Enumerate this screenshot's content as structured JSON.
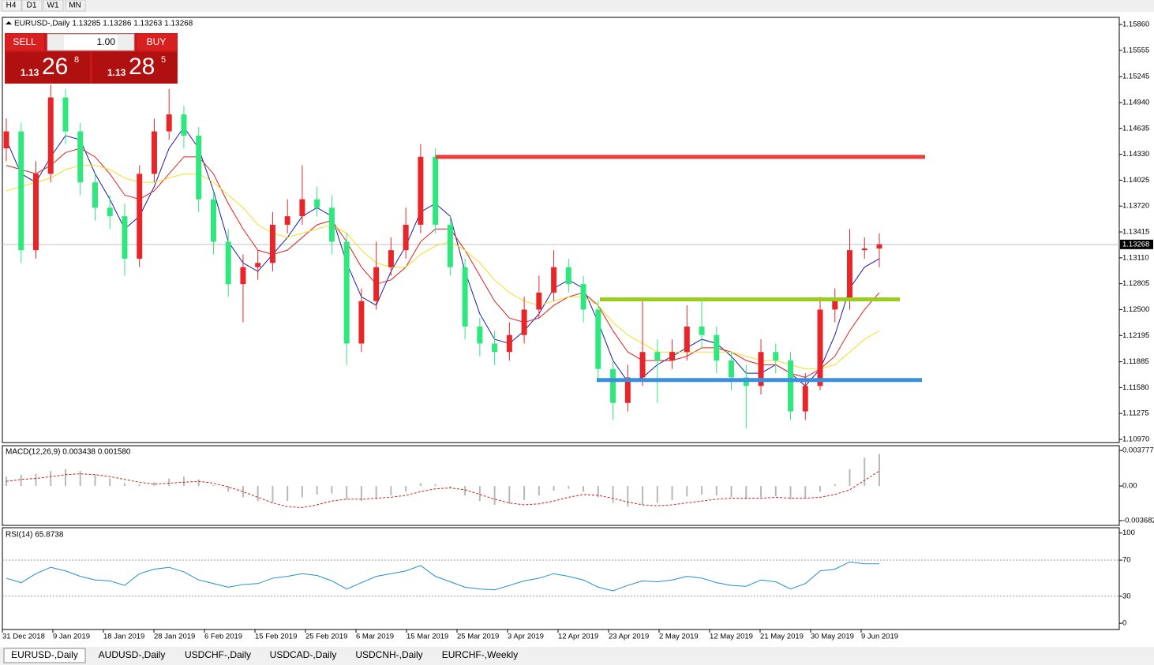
{
  "timeframes": [
    "H4",
    "D1",
    "W1",
    "MN"
  ],
  "trade_panel": {
    "sell": "SELL",
    "buy": "BUY",
    "lot": "1.00",
    "bid": {
      "big": "1.13",
      "pips": "26",
      "frac": "8"
    },
    "ask": {
      "big": "1.13",
      "pips": "28",
      "frac": "5"
    }
  },
  "tabs": [
    "EURUSD-,Daily",
    "AUDUSD-,Daily",
    "USDCHF-,Daily",
    "USDCAD-,Daily",
    "USDCNH-,Daily",
    "EURCHF-,Weekly"
  ],
  "chart_data": [
    {
      "type": "candlestick",
      "title": "EURUSD-,Daily  1.13285 1.13286 1.13263 1.13268",
      "up_color": "#e8262a",
      "down_color": "#2ee87e",
      "candles": [
        [
          1.144,
          1.1475,
          1.1425,
          1.146
        ],
        [
          1.146,
          1.147,
          1.1305,
          1.132
        ],
        [
          1.132,
          1.1425,
          1.131,
          1.141
        ],
        [
          1.141,
          1.1515,
          1.14,
          1.15
        ],
        [
          1.15,
          1.151,
          1.1445,
          1.146
        ],
        [
          1.146,
          1.147,
          1.1385,
          1.14
        ],
        [
          1.14,
          1.141,
          1.1355,
          1.137
        ],
        [
          1.137,
          1.1385,
          1.1345,
          1.136
        ],
        [
          1.136,
          1.1375,
          1.129,
          1.131
        ],
        [
          1.131,
          1.142,
          1.13,
          1.141
        ],
        [
          1.141,
          1.1475,
          1.14,
          1.146
        ],
        [
          1.146,
          1.151,
          1.145,
          1.148
        ],
        [
          1.148,
          1.149,
          1.144,
          1.1455
        ],
        [
          1.1455,
          1.1465,
          1.1365,
          1.138
        ],
        [
          1.138,
          1.139,
          1.1315,
          1.133
        ],
        [
          1.133,
          1.1345,
          1.1265,
          1.128
        ],
        [
          1.128,
          1.1315,
          1.1235,
          1.13
        ],
        [
          1.13,
          1.132,
          1.1285,
          1.1305
        ],
        [
          1.1305,
          1.1365,
          1.1295,
          1.135
        ],
        [
          1.135,
          1.138,
          1.134,
          1.136
        ],
        [
          1.136,
          1.142,
          1.135,
          1.138
        ],
        [
          1.138,
          1.1395,
          1.136,
          1.137
        ],
        [
          1.137,
          1.1385,
          1.1315,
          1.133
        ],
        [
          1.133,
          1.134,
          1.1185,
          1.121
        ],
        [
          1.121,
          1.1275,
          1.12,
          1.126
        ],
        [
          1.126,
          1.133,
          1.125,
          1.13
        ],
        [
          1.13,
          1.1335,
          1.129,
          1.132
        ],
        [
          1.132,
          1.137,
          1.131,
          1.135
        ],
        [
          1.135,
          1.1445,
          1.134,
          1.143
        ],
        [
          1.143,
          1.144,
          1.134,
          1.135
        ],
        [
          1.135,
          1.136,
          1.129,
          1.13
        ],
        [
          1.13,
          1.131,
          1.1215,
          1.123
        ],
        [
          1.123,
          1.124,
          1.1195,
          1.121
        ],
        [
          1.121,
          1.1225,
          1.1185,
          1.12
        ],
        [
          1.12,
          1.1235,
          1.119,
          1.122
        ],
        [
          1.122,
          1.1265,
          1.121,
          1.125
        ],
        [
          1.125,
          1.129,
          1.124,
          1.127
        ],
        [
          1.127,
          1.132,
          1.126,
          1.13
        ],
        [
          1.13,
          1.131,
          1.127,
          1.128
        ],
        [
          1.128,
          1.129,
          1.1235,
          1.125
        ],
        [
          1.125,
          1.126,
          1.1165,
          1.118
        ],
        [
          1.118,
          1.119,
          1.112,
          1.114
        ],
        [
          1.114,
          1.1185,
          1.113,
          1.117
        ],
        [
          1.117,
          1.126,
          1.116,
          1.12
        ],
        [
          1.12,
          1.1215,
          1.114,
          1.119
        ],
        [
          1.119,
          1.1215,
          1.118,
          1.12
        ],
        [
          1.12,
          1.1255,
          1.119,
          1.123
        ],
        [
          1.123,
          1.126,
          1.1205,
          1.122
        ],
        [
          1.122,
          1.123,
          1.1175,
          1.119
        ],
        [
          1.119,
          1.12,
          1.1155,
          1.117
        ],
        [
          1.117,
          1.1185,
          1.111,
          1.116
        ],
        [
          1.116,
          1.1215,
          1.115,
          1.12
        ],
        [
          1.12,
          1.121,
          1.1175,
          1.119
        ],
        [
          1.119,
          1.12,
          1.112,
          1.113
        ],
        [
          1.113,
          1.1175,
          1.112,
          1.116
        ],
        [
          1.116,
          1.1265,
          1.1155,
          1.125
        ],
        [
          1.125,
          1.1275,
          1.1235,
          1.126
        ],
        [
          1.126,
          1.1345,
          1.125,
          1.132
        ],
        [
          1.132,
          1.1335,
          1.131,
          1.1322
        ],
        [
          1.1322,
          1.134,
          1.13,
          1.1327
        ]
      ],
      "lines": [
        {
          "color": "#1a1aa8",
          "values": [
            1.145,
            1.141,
            1.14,
            1.143,
            1.1455,
            1.145,
            1.141,
            1.138,
            1.1345,
            1.136,
            1.1395,
            1.144,
            1.1465,
            1.144,
            1.139,
            1.133,
            1.1305,
            1.1295,
            1.1315,
            1.1335,
            1.136,
            1.137,
            1.136,
            1.1305,
            1.1265,
            1.1255,
            1.1295,
            1.1325,
            1.1365,
            1.1375,
            1.136,
            1.1295,
            1.1245,
            1.1215,
            1.121,
            1.1225,
            1.1245,
            1.1275,
            1.1285,
            1.1275,
            1.1235,
            1.119,
            1.1165,
            1.117,
            1.1185,
            1.1195,
            1.1205,
            1.1215,
            1.121,
            1.1195,
            1.1175,
            1.1175,
            1.1185,
            1.1175,
            1.116,
            1.118,
            1.122,
            1.1275,
            1.13,
            1.131
          ]
        },
        {
          "color": "#dd2020",
          "values": [
            1.142,
            1.1415,
            1.141,
            1.142,
            1.1435,
            1.144,
            1.143,
            1.141,
            1.1385,
            1.138,
            1.139,
            1.141,
            1.143,
            1.143,
            1.141,
            1.1375,
            1.1345,
            1.132,
            1.1315,
            1.132,
            1.1335,
            1.135,
            1.1355,
            1.133,
            1.13,
            1.128,
            1.1285,
            1.13,
            1.133,
            1.1345,
            1.1345,
            1.132,
            1.129,
            1.126,
            1.124,
            1.1235,
            1.124,
            1.1255,
            1.1265,
            1.127,
            1.1255,
            1.1225,
            1.12,
            1.119,
            1.119,
            1.119,
            1.1195,
            1.1205,
            1.1205,
            1.12,
            1.119,
            1.1185,
            1.1185,
            1.1175,
            1.117,
            1.118,
            1.1195,
            1.1225,
            1.125,
            1.127
          ]
        },
        {
          "color": "#f0e020",
          "values": [
            1.139,
            1.1395,
            1.14,
            1.1405,
            1.1415,
            1.142,
            1.142,
            1.1415,
            1.1405,
            1.14,
            1.14,
            1.1405,
            1.141,
            1.141,
            1.14,
            1.1385,
            1.137,
            1.135,
            1.134,
            1.1335,
            1.134,
            1.1345,
            1.135,
            1.134,
            1.132,
            1.1305,
            1.13,
            1.13,
            1.1315,
            1.1325,
            1.133,
            1.132,
            1.1305,
            1.1285,
            1.127,
            1.126,
            1.1255,
            1.126,
            1.1265,
            1.1265,
            1.1255,
            1.1235,
            1.122,
            1.121,
            1.12,
            1.12,
            1.12,
            1.12,
            1.12,
            1.12,
            1.1195,
            1.119,
            1.119,
            1.1185,
            1.118,
            1.118,
            1.1185,
            1.12,
            1.1215,
            1.1225
          ]
        }
      ],
      "levels": [
        {
          "price": 1.143,
          "color": "#ee3b3b"
        },
        {
          "price": 1.1262,
          "color": "#9acd1e"
        },
        {
          "price": 1.1167,
          "color": "#3a8fe0"
        }
      ],
      "current_price": {
        "value": 1.13268,
        "label": "1.13268"
      },
      "ylim": [
        1.10933,
        1.15944
      ],
      "yticks": [
        {
          "value": 1.1586,
          "label": "1.15860"
        },
        {
          "value": 1.15555,
          "label": "1.15555"
        },
        {
          "value": 1.15245,
          "label": "1.15245"
        },
        {
          "value": 1.1494,
          "label": "1.14940"
        },
        {
          "value": 1.14635,
          "label": "1.14635"
        },
        {
          "value": 1.1433,
          "label": "1.14330"
        },
        {
          "value": 1.14025,
          "label": "1.14025"
        },
        {
          "value": 1.1372,
          "label": "1.13720"
        },
        {
          "value": 1.13415,
          "label": "1.13415"
        },
        {
          "value": 1.1311,
          "label": "1.13110"
        },
        {
          "value": 1.12805,
          "label": "1.12805"
        },
        {
          "value": 1.125,
          "label": "1.12500"
        },
        {
          "value": 1.12195,
          "label": "1.12195"
        },
        {
          "value": 1.11885,
          "label": "1.11885"
        },
        {
          "value": 1.1158,
          "label": "1.11580"
        },
        {
          "value": 1.11275,
          "label": "1.11275"
        },
        {
          "value": 1.1097,
          "label": "1.10970"
        }
      ],
      "date_labels": [
        "31 Dec 2018",
        "9 Jan 2019",
        "18 Jan 2019",
        "28 Jan 2019",
        "6 Feb 2019",
        "15 Feb 2019",
        "25 Feb 2019",
        "6 Mar 2019",
        "15 Mar 2019",
        "25 Mar 2019",
        "3 Apr 2019",
        "12 Apr 2019",
        "23 Apr 2019",
        "2 May 2019",
        "12 May 2019",
        "21 May 2019",
        "30 May 2019",
        "9 Jun 2019"
      ]
    },
    {
      "type": "macd",
      "title": "MACD(12,26,9) 0.003438 0.001580",
      "hist_color": "#b8b8b8",
      "signal_color": "#cc2222",
      "histogram": [
        0.001,
        0.0012,
        0.0013,
        0.0016,
        0.0018,
        0.0016,
        0.0012,
        0.0008,
        0.0003,
        0.0002,
        0.0004,
        0.0008,
        0.001,
        0.0007,
        0.0001,
        -0.0006,
        -0.0012,
        -0.0016,
        -0.0018,
        -0.0016,
        -0.0012,
        -0.0009,
        -0.0008,
        -0.0014,
        -0.0016,
        -0.0014,
        -0.001,
        -0.0006,
        0.0003,
        0.0002,
        -0.0002,
        -0.001,
        -0.0016,
        -0.002,
        -0.0019,
        -0.0015,
        -0.001,
        -0.0005,
        -0.0003,
        -0.0006,
        -0.0012,
        -0.0018,
        -0.0022,
        -0.002,
        -0.0018,
        -0.0015,
        -0.0011,
        -0.0009,
        -0.001,
        -0.0012,
        -0.0014,
        -0.0012,
        -0.0011,
        -0.0014,
        -0.0013,
        -0.0006,
        0.0002,
        0.0018,
        0.003,
        0.0034
      ],
      "signal": [
        0.0005,
        0.0007,
        0.0008,
        0.001,
        0.0012,
        0.0013,
        0.0012,
        0.001,
        0.0007,
        0.0004,
        0.0002,
        0.0003,
        0.0004,
        0.0005,
        0.0003,
        -0.0001,
        -0.0006,
        -0.0012,
        -0.0018,
        -0.0022,
        -0.0023,
        -0.002,
        -0.0016,
        -0.0014,
        -0.0014,
        -0.0013,
        -0.0012,
        -0.001,
        -0.0006,
        -0.0003,
        -0.0002,
        -0.0004,
        -0.0009,
        -0.0014,
        -0.0018,
        -0.002,
        -0.0019,
        -0.0016,
        -0.0012,
        -0.0009,
        -0.001,
        -0.0013,
        -0.0017,
        -0.002,
        -0.0021,
        -0.002,
        -0.0018,
        -0.0016,
        -0.0014,
        -0.0013,
        -0.0013,
        -0.0013,
        -0.0012,
        -0.0013,
        -0.0013,
        -0.0012,
        -0.0009,
        -0.0004,
        0.0006,
        0.0016
      ],
      "ylim": [
        -0.0041,
        0.0042
      ],
      "yticks": [
        0.003777,
        {
          "value": 0,
          "label": "0.00"
        },
        -0.003682
      ]
    },
    {
      "type": "rsi",
      "title": "RSI(14) 65.8738",
      "color": "#1e8fd0",
      "values": [
        50,
        45,
        55,
        62,
        58,
        52,
        48,
        47,
        42,
        55,
        60,
        62,
        57,
        48,
        44,
        40,
        43,
        44,
        50,
        52,
        55,
        53,
        47,
        38,
        45,
        52,
        55,
        58,
        64,
        52,
        46,
        40,
        38,
        37,
        42,
        47,
        50,
        55,
        52,
        48,
        40,
        36,
        42,
        47,
        46,
        48,
        52,
        50,
        45,
        42,
        41,
        48,
        46,
        38,
        44,
        58,
        60,
        68,
        66,
        65.8738
      ],
      "levels": [
        70,
        30
      ],
      "ylim": [
        -6,
        105
      ],
      "yticks": [
        100,
        70,
        30,
        0
      ]
    }
  ]
}
